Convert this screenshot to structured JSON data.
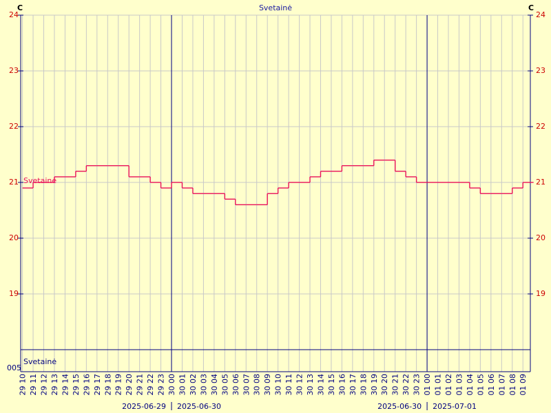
{
  "chart_data": {
    "type": "line",
    "title": "Svetainė",
    "y_unit": "C",
    "bottom_label": "005",
    "categories": [
      "29 10",
      "29 11",
      "29 12",
      "29 13",
      "29 14",
      "29 15",
      "29 16",
      "29 17",
      "29 18",
      "29 19",
      "29 20",
      "29 21",
      "29 22",
      "29 23",
      "30 00",
      "30 01",
      "30 02",
      "30 03",
      "30 04",
      "30 05",
      "30 06",
      "30 07",
      "30 08",
      "30 09",
      "30 10",
      "30 11",
      "30 12",
      "30 13",
      "30 14",
      "30 15",
      "30 16",
      "30 17",
      "30 18",
      "30 19",
      "30 20",
      "30 21",
      "30 22",
      "30 23",
      "01 00",
      "01 01",
      "01 02",
      "01 03",
      "01 04",
      "01 05",
      "01 06",
      "01 07",
      "01 08",
      "01 09"
    ],
    "series": [
      {
        "name": "Svetainė",
        "color": "#e8105a",
        "values": [
          20.9,
          21.0,
          21.0,
          21.1,
          21.1,
          21.2,
          21.3,
          21.3,
          21.3,
          21.3,
          21.1,
          21.1,
          21.0,
          20.9,
          21.0,
          20.9,
          20.8,
          20.8,
          20.8,
          20.7,
          20.6,
          20.6,
          20.6,
          20.8,
          20.9,
          21.0,
          21.0,
          21.1,
          21.2,
          21.2,
          21.3,
          21.3,
          21.3,
          21.4,
          21.4,
          21.2,
          21.1,
          21.0,
          21.0,
          21.0,
          21.0,
          21.0,
          20.9,
          20.8,
          20.8,
          20.8,
          20.9,
          21.0
        ]
      }
    ],
    "ylim": [
      18,
      24
    ],
    "yticks": [
      19,
      20,
      21,
      22,
      23,
      24
    ],
    "grid": true,
    "day_labels": [
      [
        "2025-06-29",
        "2025-06-30"
      ],
      [
        "2025-06-30",
        "2025-07-01"
      ]
    ]
  }
}
